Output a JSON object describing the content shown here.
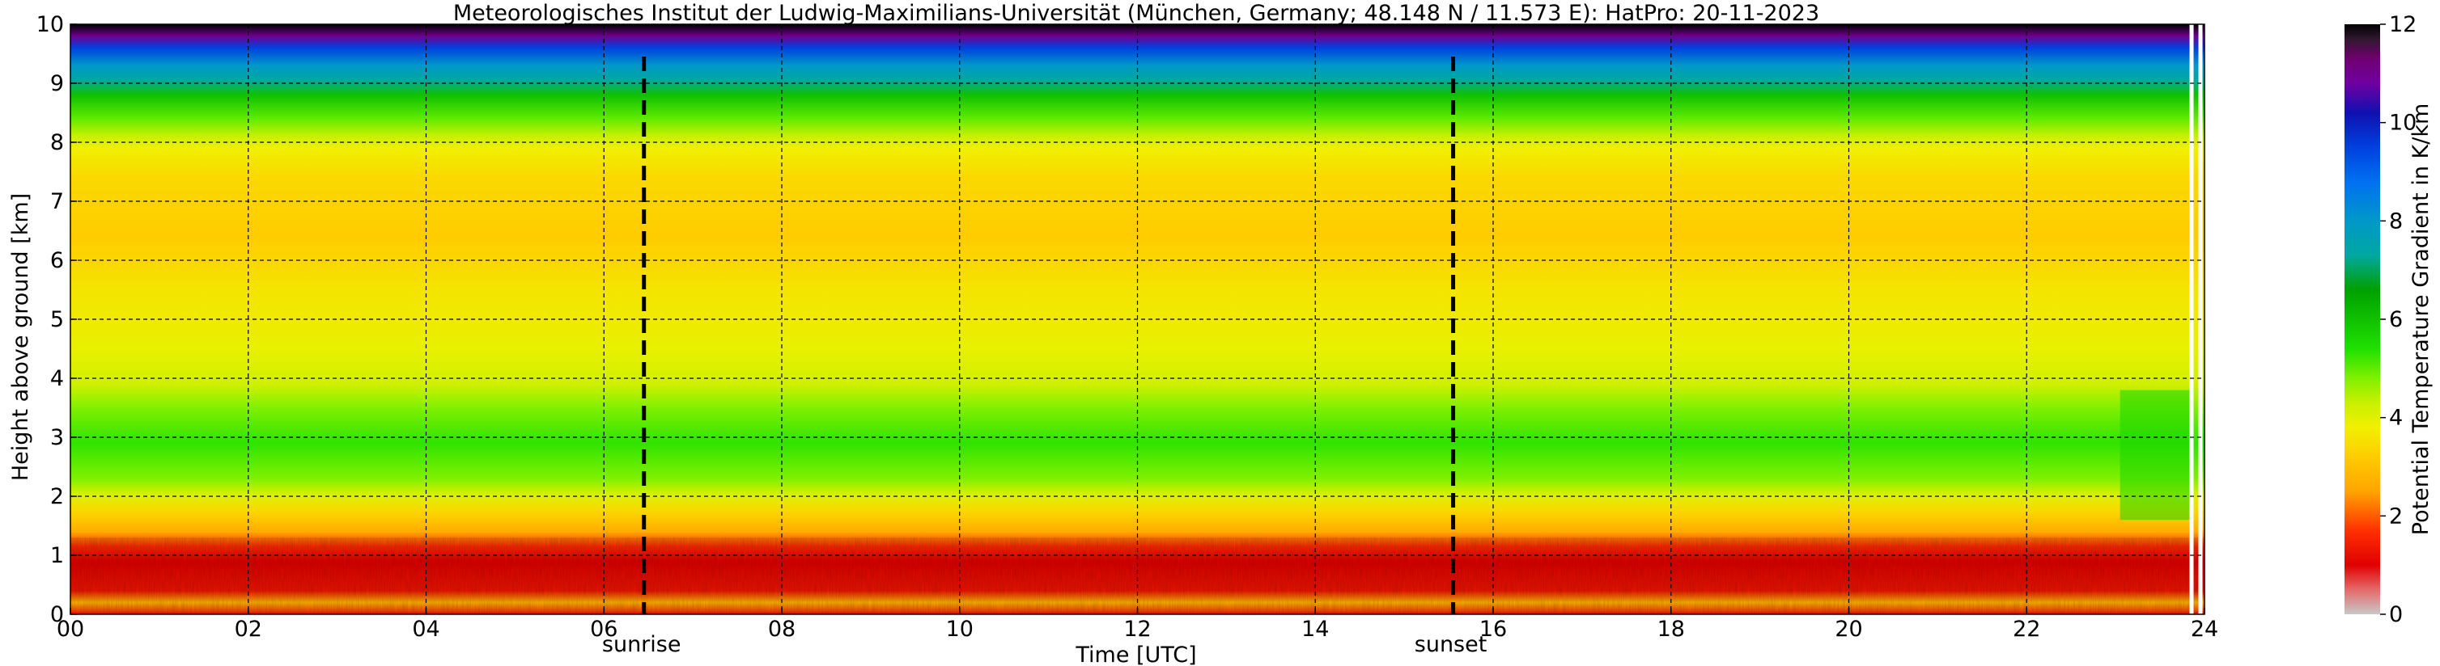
{
  "chart_data": {
    "type": "heatmap",
    "title": "Meteorologisches Institut der Ludwig-Maximilians-Universität (München, Germany; 48.148 N / 11.573 E):    HatPro: 20-11-2023",
    "xlabel": "Time [UTC]",
    "ylabel": "Height above ground [km]",
    "xlim": [
      0,
      24
    ],
    "ylim": [
      0,
      10
    ],
    "x_ticks": [
      0,
      2,
      4,
      6,
      8,
      10,
      12,
      14,
      16,
      18,
      20,
      22,
      24
    ],
    "x_tick_labels": [
      "00",
      "02",
      "04",
      "06",
      "08",
      "10",
      "12",
      "14",
      "16",
      "18",
      "20",
      "22",
      "24"
    ],
    "y_ticks": [
      0,
      1,
      2,
      3,
      4,
      5,
      6,
      7,
      8,
      9,
      10
    ],
    "y_tick_labels": [
      "0",
      "1",
      "2",
      "3",
      "4",
      "5",
      "6",
      "7",
      "8",
      "9",
      "10"
    ],
    "grid": true,
    "colorbar": {
      "label": "Potential Temperature Gradient in K/km",
      "range": [
        0,
        12
      ],
      "ticks": [
        0,
        2,
        4,
        6,
        8,
        10,
        12
      ],
      "tick_labels": [
        "0",
        "2",
        "4",
        "6",
        "8",
        "10",
        "12"
      ],
      "stops": [
        {
          "v": 0.0,
          "color": "#c8c8c8"
        },
        {
          "v": 0.5,
          "color": "#e46a6a"
        },
        {
          "v": 1.0,
          "color": "#e00000"
        },
        {
          "v": 1.7,
          "color": "#ff3000"
        },
        {
          "v": 2.5,
          "color": "#ffa500"
        },
        {
          "v": 3.2,
          "color": "#ffcc00"
        },
        {
          "v": 3.8,
          "color": "#f0f000"
        },
        {
          "v": 4.3,
          "color": "#c8f000"
        },
        {
          "v": 4.8,
          "color": "#80f000"
        },
        {
          "v": 5.4,
          "color": "#20e000"
        },
        {
          "v": 6.0,
          "color": "#10c000"
        },
        {
          "v": 6.6,
          "color": "#00a000"
        },
        {
          "v": 7.3,
          "color": "#00a8a0"
        },
        {
          "v": 8.0,
          "color": "#0098c8"
        },
        {
          "v": 8.8,
          "color": "#0070f0"
        },
        {
          "v": 9.5,
          "color": "#0040e0"
        },
        {
          "v": 10.2,
          "color": "#1010b0"
        },
        {
          "v": 10.8,
          "color": "#7000a0"
        },
        {
          "v": 11.3,
          "color": "#700070"
        },
        {
          "v": 11.7,
          "color": "#301830"
        },
        {
          "v": 12.0,
          "color": "#000000"
        }
      ]
    },
    "vertical_profile": [
      {
        "h": 0.0,
        "v": 1.0
      },
      {
        "h": 0.05,
        "v": 1.8
      },
      {
        "h": 0.2,
        "v": 2.8
      },
      {
        "h": 0.4,
        "v": 1.3
      },
      {
        "h": 0.9,
        "v": 1.0
      },
      {
        "h": 1.15,
        "v": 1.6
      },
      {
        "h": 1.4,
        "v": 2.6
      },
      {
        "h": 1.7,
        "v": 3.3
      },
      {
        "h": 2.0,
        "v": 4.0
      },
      {
        "h": 2.3,
        "v": 4.8
      },
      {
        "h": 2.9,
        "v": 5.3
      },
      {
        "h": 3.5,
        "v": 4.8
      },
      {
        "h": 3.9,
        "v": 4.2
      },
      {
        "h": 4.5,
        "v": 3.9
      },
      {
        "h": 5.5,
        "v": 3.6
      },
      {
        "h": 6.4,
        "v": 3.2
      },
      {
        "h": 7.4,
        "v": 3.4
      },
      {
        "h": 7.9,
        "v": 3.8
      },
      {
        "h": 8.1,
        "v": 4.3
      },
      {
        "h": 8.4,
        "v": 5.0
      },
      {
        "h": 8.8,
        "v": 6.0
      },
      {
        "h": 9.05,
        "v": 7.3
      },
      {
        "h": 9.3,
        "v": 8.0
      },
      {
        "h": 9.6,
        "v": 9.5
      },
      {
        "h": 9.8,
        "v": 11.0
      },
      {
        "h": 10.0,
        "v": 12.0
      }
    ],
    "events": [
      {
        "label": "sunrise",
        "time": 6.45
      },
      {
        "label": "sunset",
        "time": 15.55
      }
    ],
    "missing_data_times": [
      23.85,
      23.95
    ]
  }
}
